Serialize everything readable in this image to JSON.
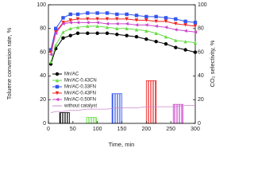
{
  "chart_data": {
    "type": "line",
    "xlabel": "Time, min",
    "ylabel": "Toluene conversion rate, %",
    "y2label": "CO₂ selectivity, %",
    "x": [
      5,
      15,
      30,
      45,
      60,
      80,
      100,
      120,
      140,
      160,
      180,
      200,
      220,
      240,
      260,
      280,
      300
    ],
    "xlim": [
      0,
      300
    ],
    "xticks": [
      0,
      50,
      100,
      150,
      200,
      250,
      300
    ],
    "ylim": [
      0,
      100
    ],
    "yticks": [
      0,
      20,
      40,
      60,
      80,
      100
    ],
    "y2lim": [
      0,
      100
    ],
    "y2ticks": [
      0,
      20,
      40,
      60,
      80,
      100
    ],
    "series": [
      {
        "name": "Mn/AC",
        "color": "#000000",
        "marker": "circle",
        "values": [
          50,
          63,
          72,
          74,
          76,
          76,
          76,
          76,
          75,
          74,
          73,
          71,
          69,
          67,
          64,
          62,
          60
        ]
      },
      {
        "name": "Mn/AC-0.43CN",
        "color": "#66dd44",
        "marker": "triangle-up",
        "values": [
          52,
          66,
          77,
          80,
          81,
          82,
          82,
          81,
          80,
          80,
          79,
          78,
          76,
          73,
          70,
          69,
          68
        ]
      },
      {
        "name": "Mn/AC-0.33FN",
        "color": "#3355ee",
        "marker": "square",
        "values": [
          62,
          80,
          89,
          92,
          92,
          93,
          93,
          93,
          92,
          92,
          91,
          90,
          90,
          89,
          88,
          86,
          85
        ]
      },
      {
        "name": "Mn/AC-0.43FN",
        "color": "#ee2222",
        "marker": "triangle-down",
        "values": [
          60,
          77,
          85,
          87,
          88,
          88,
          88,
          88,
          88,
          88,
          87,
          87,
          86,
          86,
          84,
          83,
          82
        ]
      },
      {
        "name": "Mn/AC-0.50FN",
        "color": "#cc44cc",
        "marker": "triangle-left",
        "values": [
          58,
          76,
          84,
          85,
          85,
          85,
          85,
          84,
          84,
          84,
          83,
          83,
          82,
          81,
          79,
          78,
          77
        ]
      },
      {
        "name": "without catalyst",
        "color": "#cc88cc",
        "marker": "none",
        "values": [
          9,
          10,
          10,
          11,
          11,
          12,
          12,
          12,
          13,
          13,
          13,
          14,
          14,
          14,
          14,
          15,
          15
        ]
      }
    ],
    "bars": {
      "axis": "y2",
      "x": [
        33,
        88,
        140,
        210,
        265
      ],
      "values": [
        9,
        5,
        25,
        36,
        16
      ],
      "colors": [
        "#000000",
        "#66dd44",
        "#3355ee",
        "#ee2222",
        "#cc44cc"
      ]
    }
  }
}
